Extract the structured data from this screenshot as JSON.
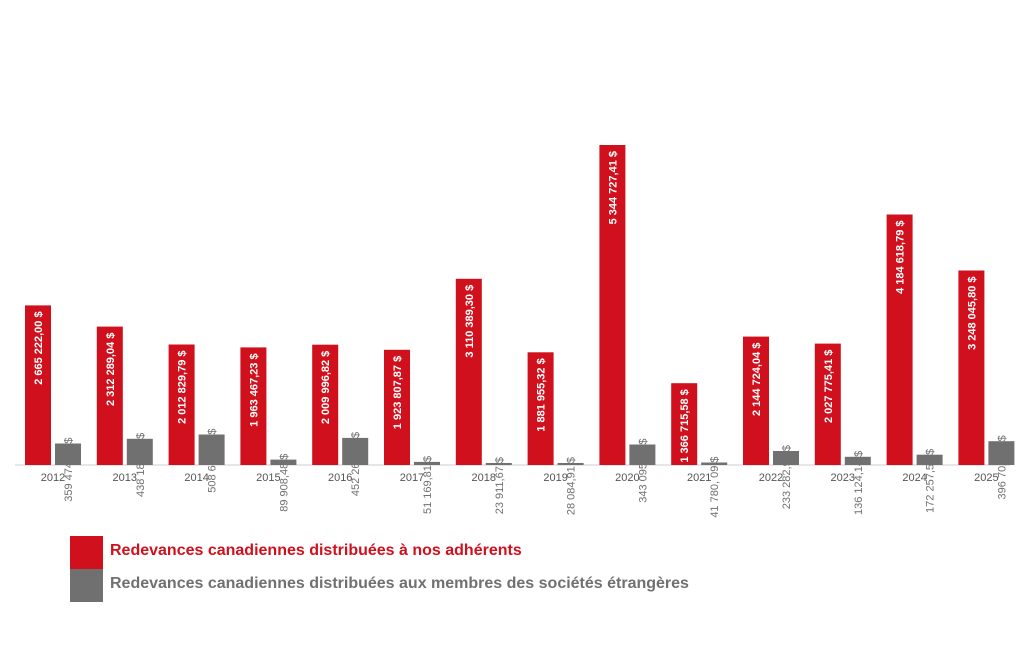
{
  "chart_data": {
    "type": "bar",
    "categories": [
      "2012",
      "2013",
      "2014",
      "2015",
      "2016",
      "2017",
      "2018",
      "2019",
      "2020",
      "2021",
      "2022",
      "2023",
      "2024",
      "2025"
    ],
    "series": [
      {
        "name": "Redevances canadiennes distribuées à nos adhérents",
        "color": "#d0101c",
        "values": [
          2665222.0,
          2312289.04,
          2012829.79,
          1963467.23,
          2009996.82,
          1923807.87,
          3110389.3,
          1881955.32,
          5344727.41,
          1366715.58,
          2144724.04,
          2027775.41,
          4184618.79,
          3248045.8
        ],
        "labels": [
          "2 665 222,00 $",
          "2 312 289,04 $",
          "2 012 829,79 $",
          "1 963 467,23 $",
          "2 009 996,82 $",
          "1 923 807,87 $",
          "3 110 389,30 $",
          "1 881 955,32 $",
          "5 344 727,41 $",
          "1 366 715,58 $",
          "2 144 724,04 $",
          "2 027 775,41 $",
          "4 184 618,79 $",
          "3 248 045,80 $"
        ]
      },
      {
        "name": "Redevances canadiennes distribuées aux membres des sociétés étrangères",
        "color": "#707070",
        "values": [
          359474.0,
          438185.64,
          508629.96,
          89908.48,
          452268.58,
          51169.81,
          23911.67,
          28084.91,
          343095.12,
          41780.09,
          233282.96,
          136124.14,
          172257.56,
          396702.6
        ],
        "labels": [
          "359 474,00 $",
          "438 185,64 $",
          "508 629,96 $",
          "89 908,48 $",
          "452 268,58 $",
          "51 169,81 $",
          "23 911,67 $",
          "28 084,91 $",
          "343 095,12 $",
          "41 780, 09 $",
          "233 282,96 $",
          "136 124,14 $",
          "172 257,56 $",
          "396 702,60 $"
        ]
      }
    ],
    "ylim": [
      0,
      5500000
    ],
    "grid": false,
    "legend_position": "bottom-left"
  }
}
